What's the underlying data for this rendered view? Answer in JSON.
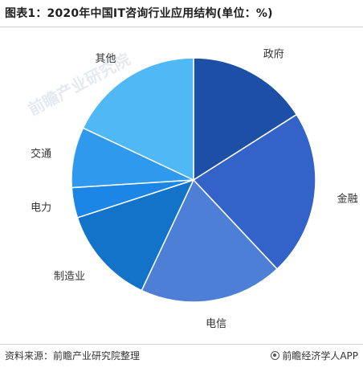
{
  "title": "图表1：2020年中国IT咨询行业应用结构(单位：%)",
  "footer": {
    "source": "资料来源：前瞻产业研究院整理",
    "brand": "前瞻经济学人APP"
  },
  "watermark": {
    "text": "前瞻产业研究院"
  },
  "chart_data": {
    "type": "pie",
    "start_angle_deg": 0,
    "direction": "clockwise",
    "slices": [
      {
        "label": "政府",
        "value": 16,
        "color": "#1e4fa6"
      },
      {
        "label": "金融",
        "value": 22,
        "color": "#3362c8"
      },
      {
        "label": "电信",
        "value": 19,
        "color": "#4e7fd6"
      },
      {
        "label": "制造业",
        "value": 13,
        "color": "#1273c9"
      },
      {
        "label": "电力",
        "value": 4,
        "color": "#1c86e6"
      },
      {
        "label": "交通",
        "value": 8,
        "color": "#2f99ee"
      },
      {
        "label": "其他",
        "value": 18,
        "color": "#4fb8f5"
      }
    ]
  }
}
